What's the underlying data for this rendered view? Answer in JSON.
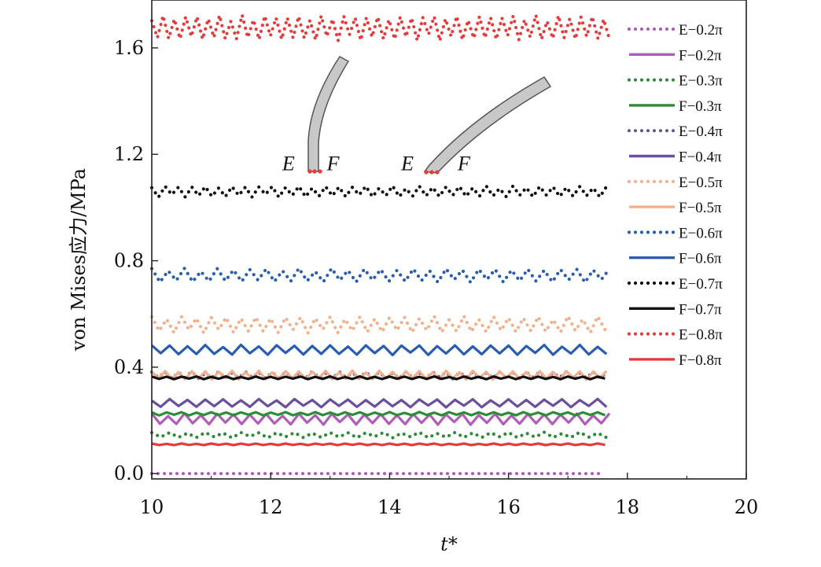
{
  "chart_data": {
    "type": "line",
    "title": "",
    "xlabel": "t*",
    "ylabel": "von Mises应力/MPa",
    "xlim": [
      10,
      20
    ],
    "ylim": [
      -0.02,
      1.78
    ],
    "x_ticks": [
      "10",
      "12",
      "14",
      "16",
      "18",
      "20"
    ],
    "y_ticks": [
      "0.0",
      "0.4",
      "0.8",
      "1.2",
      "1.6"
    ],
    "legend_position": "right",
    "grid": false,
    "x_range": [
      10,
      17.7
    ],
    "inset_labels": [
      {
        "text": "E",
        "x": 12.3,
        "y": 1.14
      },
      {
        "text": "F",
        "x": 13.05,
        "y": 1.14
      },
      {
        "text": "E",
        "x": 14.3,
        "y": 1.14
      },
      {
        "text": "F",
        "x": 15.25,
        "y": 1.14
      }
    ],
    "series": [
      {
        "name": "E−0.2π",
        "style": "dotted",
        "color": "#b05cb8",
        "mean": 0.0,
        "amp": 0.0,
        "period": 0.8
      },
      {
        "name": "F−0.2π",
        "style": "solid",
        "color": "#b05cb8",
        "mean": 0.205,
        "amp": 0.02,
        "period": 0.55
      },
      {
        "name": "E−0.3π",
        "style": "dotted",
        "color": "#2e8b3a",
        "mean": 0.145,
        "amp": 0.01,
        "period": 0.6
      },
      {
        "name": "F−0.3π",
        "style": "solid",
        "color": "#2e8b3a",
        "mean": 0.225,
        "amp": 0.006,
        "period": 0.5
      },
      {
        "name": "E−0.4π",
        "style": "dotted",
        "color": "#6a4fa0",
        "mean": 0.37,
        "amp": 0.013,
        "period": 0.45
      },
      {
        "name": "F−0.4π",
        "style": "solid",
        "color": "#6a4fa0",
        "mean": 0.265,
        "amp": 0.015,
        "period": 0.6
      },
      {
        "name": "E−0.5π",
        "style": "dotted",
        "color": "#f3b08a",
        "mean": 0.56,
        "amp": 0.03,
        "period": 0.5
      },
      {
        "name": "F−0.5π",
        "style": "solid",
        "color": "#f3b08a",
        "mean": 0.37,
        "amp": 0.016,
        "period": 0.45
      },
      {
        "name": "E−0.6π",
        "style": "dotted",
        "color": "#2a5cb0",
        "mean": 0.745,
        "amp": 0.025,
        "period": 0.55
      },
      {
        "name": "F−0.6π",
        "style": "solid",
        "color": "#2a5cb0",
        "mean": 0.465,
        "amp": 0.018,
        "period": 0.6
      },
      {
        "name": "E−0.7π",
        "style": "dotted",
        "color": "#111111",
        "mean": 1.06,
        "amp": 0.02,
        "period": 0.45
      },
      {
        "name": "F−0.7π",
        "style": "solid",
        "color": "#111111",
        "mean": 0.36,
        "amp": 0.005,
        "period": 0.5
      },
      {
        "name": "E−0.8π",
        "style": "dotted",
        "color": "#e43c3c",
        "mean": 1.675,
        "amp": 0.045,
        "period": 0.38
      },
      {
        "name": "F−0.8π",
        "style": "solid",
        "color": "#e43c3c",
        "mean": 0.11,
        "amp": 0.003,
        "period": 0.5
      }
    ]
  }
}
